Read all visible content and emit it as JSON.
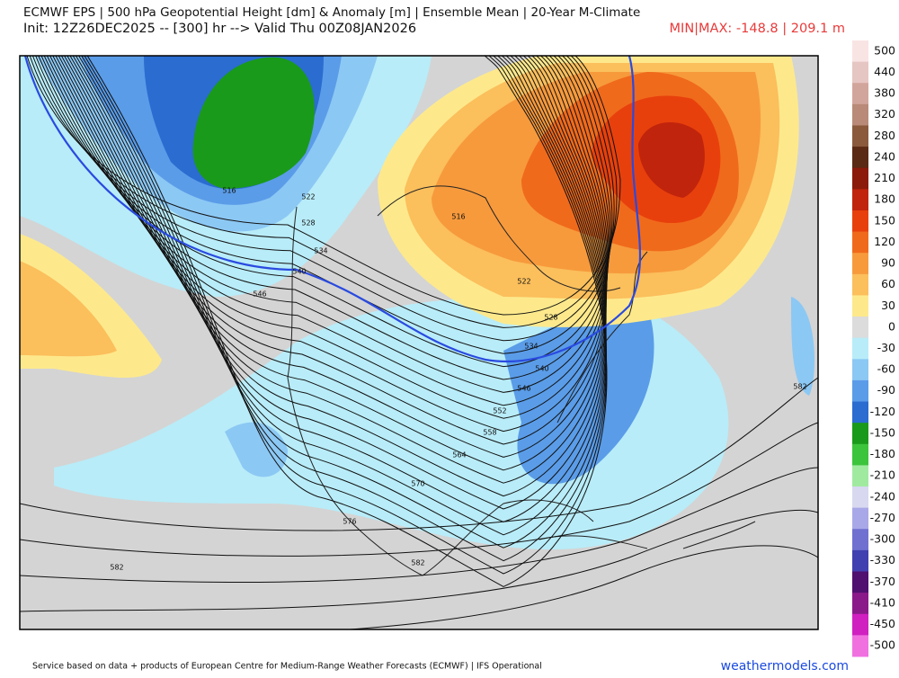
{
  "header": {
    "title": "ECMWF EPS | 500 hPa Geopotential Height [dm] & Anomaly [m] | Ensemble Mean | 20-Year M-Climate",
    "subtitle": "Init: 12Z26DEC2025 -- [300] hr --> Valid Thu 00Z08JAN2026",
    "minmax": "MIN|MAX: -148.8 | 209.1 m"
  },
  "colorbar": {
    "ticks": [
      500,
      440,
      380,
      320,
      280,
      240,
      210,
      180,
      150,
      120,
      90,
      60,
      30,
      0,
      -30,
      -60,
      -90,
      -120,
      -150,
      -180,
      -210,
      -240,
      -270,
      -300,
      -330,
      -370,
      -410,
      -450,
      -500
    ],
    "colors": [
      "#f9e4e4",
      "#e6c6c2",
      "#d2a59c",
      "#b98a78",
      "#8b5a3c",
      "#5a2a14",
      "#8b1a0a",
      "#c0240c",
      "#e8400c",
      "#f06a1c",
      "#f79a3c",
      "#fbbf5c",
      "#fde98c",
      "#dcdcdc",
      "#b8ecf8",
      "#8cc8f4",
      "#5a9ce8",
      "#2a6cd0",
      "#1a9a1a",
      "#3cc43c",
      "#a0eaa0",
      "#d8d8f0",
      "#a8a8e8",
      "#7070d0",
      "#4040b0",
      "#501070",
      "#8a1a8a",
      "#d020c0",
      "#f070e0"
    ]
  },
  "contour_labels": [
    516,
    522,
    528,
    534,
    540,
    546,
    516,
    522,
    528,
    534,
    540,
    546,
    552,
    558,
    564,
    570,
    576,
    582,
    582,
    582
  ],
  "footer": {
    "credit": "Service based on data + products of European Centre for Medium-Range Weather Forecasts (ECMWF) | IFS Operational",
    "site": "weathermodels.com"
  }
}
